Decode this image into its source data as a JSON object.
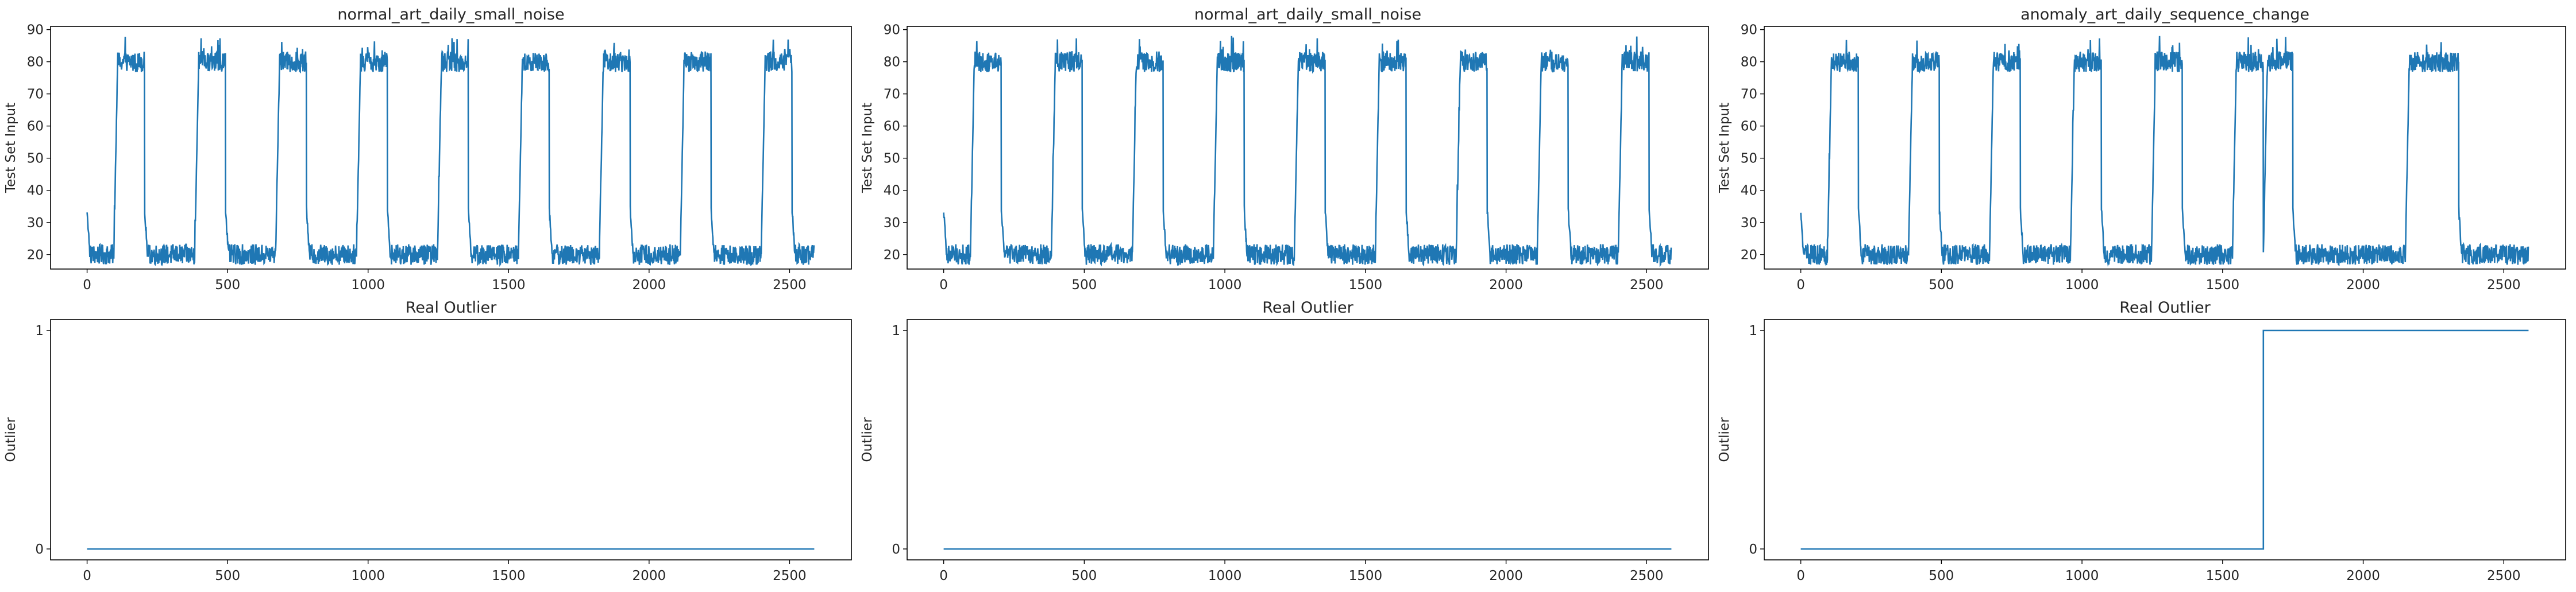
{
  "chart_data": [
    {
      "type": "line",
      "title": "normal_art_daily_small_noise",
      "xlabel": "",
      "ylabel": "Test Set Input",
      "xlim": [
        -130,
        2720
      ],
      "ylim": [
        15.5,
        91
      ],
      "xticks": [
        0,
        500,
        1000,
        1500,
        2000,
        2500
      ],
      "yticks": [
        20,
        30,
        40,
        50,
        60,
        70,
        80,
        90
      ],
      "series": [
        {
          "color": "#1f77b4",
          "pattern": "daily",
          "low": 20,
          "high": 80,
          "noise": 4,
          "segments": [
            [
              0,
              95,
              "low"
            ],
            [
              95,
              205,
              "high"
            ],
            [
              205,
              383,
              "low"
            ],
            [
              383,
              493,
              "high"
            ],
            [
              493,
              671,
              "low"
            ],
            [
              671,
              781,
              "high"
            ],
            [
              781,
              959,
              "low"
            ],
            [
              959,
              1069,
              "high"
            ],
            [
              1069,
              1247,
              "low"
            ],
            [
              1247,
              1357,
              "high"
            ],
            [
              1357,
              1535,
              "low"
            ],
            [
              1535,
              1645,
              "high"
            ],
            [
              1645,
              1823,
              "low"
            ],
            [
              1823,
              1933,
              "high"
            ],
            [
              1933,
              2111,
              "low"
            ],
            [
              2111,
              2221,
              "high"
            ],
            [
              2221,
              2399,
              "low"
            ],
            [
              2399,
              2509,
              "high"
            ],
            [
              2509,
              2588,
              "low"
            ]
          ]
        }
      ],
      "grid": false
    },
    {
      "type": "line",
      "title": "normal_art_daily_small_noise",
      "xlabel": "",
      "ylabel": "Test Set Input",
      "xlim": [
        -130,
        2720
      ],
      "ylim": [
        15.5,
        91
      ],
      "xticks": [
        0,
        500,
        1000,
        1500,
        2000,
        2500
      ],
      "yticks": [
        20,
        30,
        40,
        50,
        60,
        70,
        80,
        90
      ],
      "series": [
        {
          "color": "#1f77b4",
          "pattern": "daily",
          "low": 20,
          "high": 80,
          "noise": 4,
          "segments": [
            [
              0,
              95,
              "low"
            ],
            [
              95,
              205,
              "high"
            ],
            [
              205,
              383,
              "low"
            ],
            [
              383,
              493,
              "high"
            ],
            [
              493,
              671,
              "low"
            ],
            [
              671,
              781,
              "high"
            ],
            [
              781,
              959,
              "low"
            ],
            [
              959,
              1069,
              "high"
            ],
            [
              1069,
              1247,
              "low"
            ],
            [
              1247,
              1357,
              "high"
            ],
            [
              1357,
              1535,
              "low"
            ],
            [
              1535,
              1645,
              "high"
            ],
            [
              1645,
              1823,
              "low"
            ],
            [
              1823,
              1933,
              "high"
            ],
            [
              1933,
              2111,
              "low"
            ],
            [
              2111,
              2221,
              "high"
            ],
            [
              2221,
              2399,
              "low"
            ],
            [
              2399,
              2509,
              "high"
            ],
            [
              2509,
              2588,
              "low"
            ]
          ]
        }
      ],
      "grid": false
    },
    {
      "type": "line",
      "title": "anomaly_art_daily_sequence_change",
      "xlabel": "",
      "ylabel": "Test Set Input",
      "xlim": [
        -130,
        2720
      ],
      "ylim": [
        15.5,
        91
      ],
      "xticks": [
        0,
        500,
        1000,
        1500,
        2000,
        2500
      ],
      "yticks": [
        20,
        30,
        40,
        50,
        60,
        70,
        80,
        90
      ],
      "series": [
        {
          "color": "#1f77b4",
          "pattern": "daily",
          "low": 20,
          "high": 80,
          "noise": 4,
          "segments": [
            [
              0,
              95,
              "low"
            ],
            [
              95,
              205,
              "high"
            ],
            [
              205,
              383,
              "low"
            ],
            [
              383,
              493,
              "high"
            ],
            [
              493,
              671,
              "low"
            ],
            [
              671,
              781,
              "high"
            ],
            [
              781,
              959,
              "low"
            ],
            [
              959,
              1069,
              "high"
            ],
            [
              1069,
              1247,
              "low"
            ],
            [
              1247,
              1357,
              "high"
            ],
            [
              1357,
              1535,
              "low"
            ],
            [
              1535,
              1645,
              "high"
            ],
            [
              1645,
              1750,
              "high"
            ],
            [
              1750,
              2150,
              "low"
            ],
            [
              2150,
              2340,
              "high"
            ],
            [
              2340,
              2588,
              "low"
            ]
          ]
        }
      ],
      "grid": false
    },
    {
      "type": "line",
      "title": "Real Outlier",
      "xlabel": "",
      "ylabel": "Outlier",
      "xlim": [
        -130,
        2720
      ],
      "ylim": [
        -0.05,
        1.05
      ],
      "xticks": [
        0,
        500,
        1000,
        1500,
        2000,
        2500
      ],
      "yticks": [
        0,
        1
      ],
      "series": [
        {
          "color": "#1f77b4",
          "points": [
            [
              0,
              0
            ],
            [
              2588,
              0
            ]
          ]
        }
      ],
      "grid": false
    },
    {
      "type": "line",
      "title": "Real Outlier",
      "xlabel": "",
      "ylabel": "Outlier",
      "xlim": [
        -130,
        2720
      ],
      "ylim": [
        -0.05,
        1.05
      ],
      "xticks": [
        0,
        500,
        1000,
        1500,
        2000,
        2500
      ],
      "yticks": [
        0,
        1
      ],
      "series": [
        {
          "color": "#1f77b4",
          "points": [
            [
              0,
              0
            ],
            [
              2588,
              0
            ]
          ]
        }
      ],
      "grid": false
    },
    {
      "type": "line",
      "title": "Real Outlier",
      "xlabel": "",
      "ylabel": "Outlier",
      "xlim": [
        -130,
        2720
      ],
      "ylim": [
        -0.05,
        1.05
      ],
      "xticks": [
        0,
        500,
        1000,
        1500,
        2000,
        2500
      ],
      "yticks": [
        0,
        1
      ],
      "series": [
        {
          "color": "#1f77b4",
          "points": [
            [
              0,
              0
            ],
            [
              1645,
              0
            ],
            [
              1645,
              1
            ],
            [
              2588,
              1
            ]
          ]
        }
      ],
      "grid": false
    }
  ]
}
